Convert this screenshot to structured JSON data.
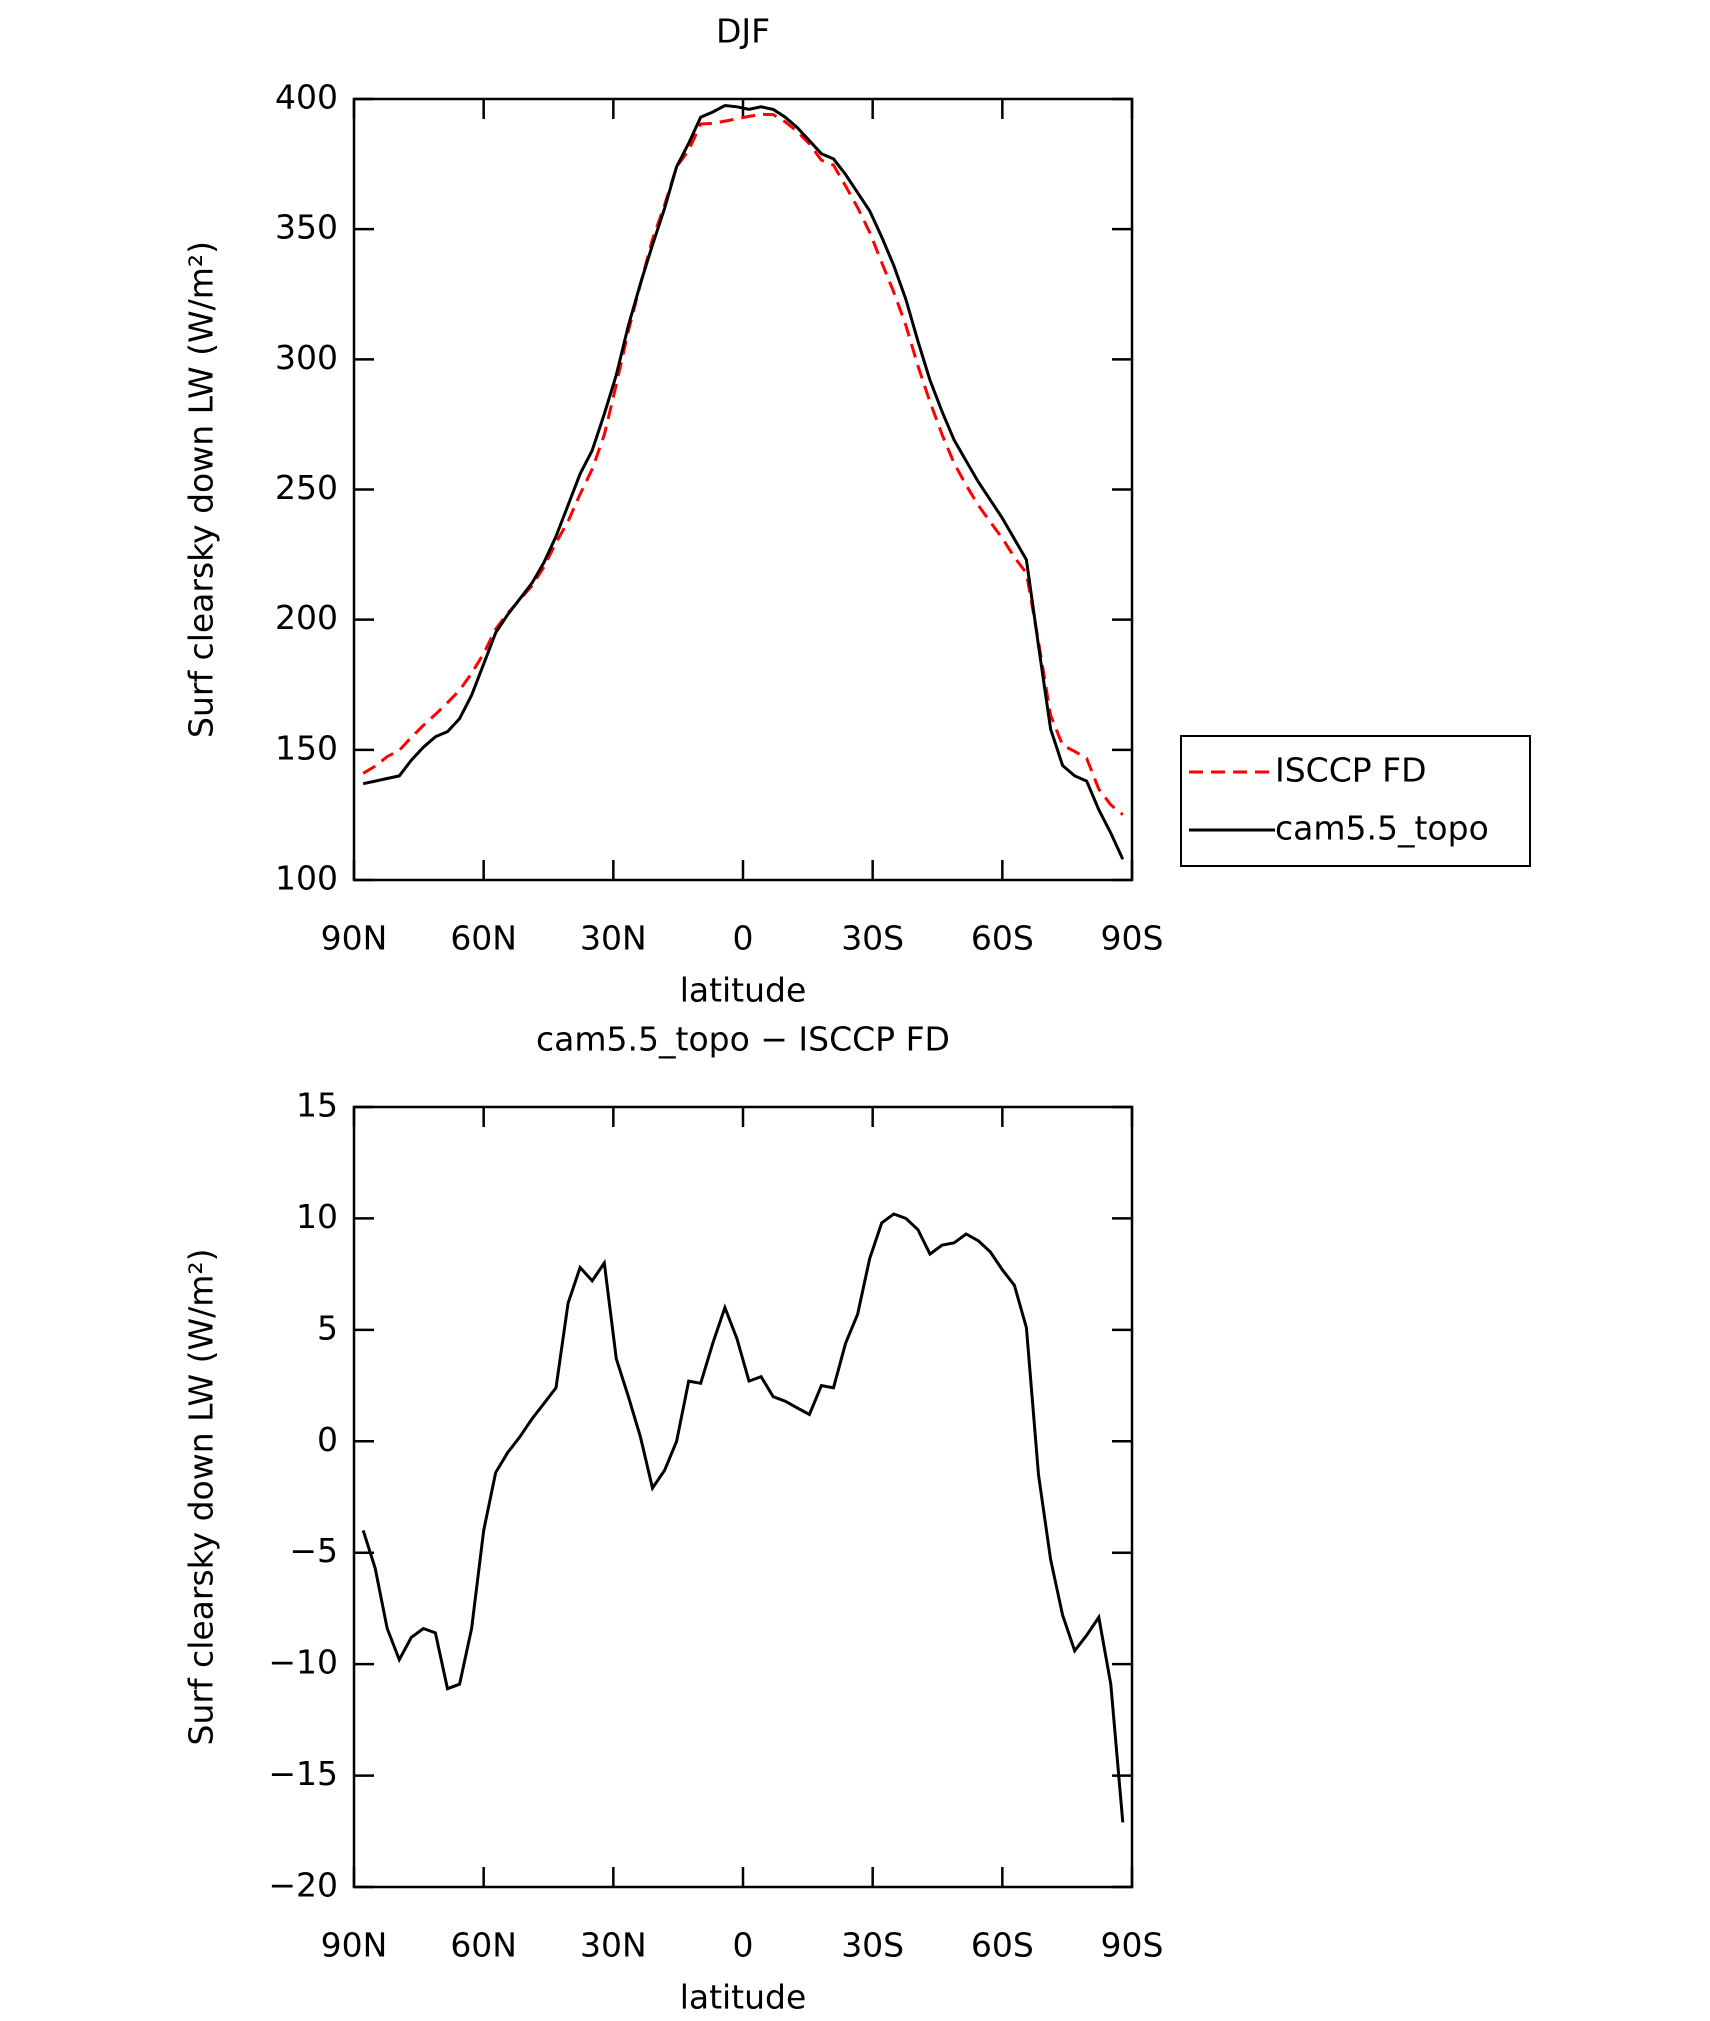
{
  "chart_data": [
    {
      "type": "line",
      "title": "DJF",
      "x_label": "latitude",
      "y_label": "Surf clearsky down LW (W/m²)",
      "x": [
        87.864,
        85.097,
        82.313,
        79.526,
        76.737,
        73.948,
        71.158,
        68.368,
        65.578,
        62.789,
        59.999,
        57.209,
        54.418,
        51.628,
        48.838,
        46.048,
        43.258,
        40.468,
        37.678,
        34.888,
        32.097,
        29.307,
        26.517,
        23.727,
        20.937,
        18.147,
        15.356,
        12.566,
        9.776,
        6.986,
        4.196,
        1.395,
        -1.395,
        -4.196,
        -6.986,
        -9.776,
        -12.566,
        -15.356,
        -18.147,
        -20.937,
        -23.727,
        -26.517,
        -29.307,
        -32.097,
        -34.888,
        -37.678,
        -40.468,
        -43.258,
        -46.048,
        -48.838,
        -51.628,
        -54.418,
        -57.209,
        -59.999,
        -62.789,
        -65.578,
        -68.368,
        -71.158,
        -73.948,
        -76.737,
        -79.526,
        -82.313,
        -85.097,
        -87.864
      ],
      "series": [
        {
          "name": "ISCCP FD",
          "color": "#ff0000",
          "linestyle": "dashed",
          "values": [
            141,
            143.7,
            147.4,
            149.8,
            154.8,
            159.4,
            163.6,
            168.1,
            172.9,
            179.4,
            187,
            196.4,
            202.5,
            207.8,
            213,
            220.3,
            229.6,
            237.8,
            248.2,
            257.8,
            271,
            290.3,
            311,
            328.8,
            346.1,
            359.3,
            374,
            380.3,
            390.4,
            390.6,
            391.5,
            392.4,
            393.3,
            394.1,
            394,
            391.2,
            387.5,
            382.8,
            376.5,
            374.6,
            366.6,
            358.3,
            348.8,
            337.2,
            325.8,
            313,
            297.5,
            283.6,
            271.2,
            260.1,
            251.7,
            244,
            237.5,
            231.3,
            224,
            217.9,
            191.5,
            163.3,
            151.8,
            149.4,
            146.7,
            134.9,
            128.9,
            125.1
          ]
        },
        {
          "name": "cam5.5_topo",
          "color": "#000000",
          "linestyle": "solid",
          "values": [
            137,
            138,
            139,
            140,
            146,
            151,
            155,
            157,
            162,
            171,
            183,
            195,
            202,
            208,
            214,
            222,
            232,
            244,
            256,
            265,
            279,
            294,
            313,
            329,
            344,
            358,
            374,
            383,
            393,
            395,
            397.5,
            397,
            396,
            397,
            396,
            393,
            389,
            384,
            379,
            377,
            371,
            364,
            357,
            347,
            336,
            323,
            307,
            292,
            280,
            269,
            261,
            253,
            246,
            239,
            231,
            223,
            190,
            158,
            144,
            140,
            138,
            127,
            118,
            108
          ]
        }
      ],
      "xlim": [
        90,
        -90
      ],
      "xticks": [
        {
          "value": 90,
          "label": "90N"
        },
        {
          "value": 60,
          "label": "60N"
        },
        {
          "value": 30,
          "label": "30N"
        },
        0,
        {
          "value": -30,
          "label": "30S"
        },
        {
          "value": -60,
          "label": "60S"
        },
        {
          "value": -90,
          "label": "90S"
        }
      ],
      "ylim": [
        100,
        400
      ],
      "yticks": [
        100,
        150,
        200,
        250,
        300,
        350,
        400
      ],
      "legend": "right"
    },
    {
      "type": "line",
      "title": "cam5.5_topo − ISCCP FD",
      "x_label": "latitude",
      "y_label": "Surf clearsky down LW (W/m²)",
      "x": [
        87.864,
        85.097,
        82.313,
        79.526,
        76.737,
        73.948,
        71.158,
        68.368,
        65.578,
        62.789,
        59.999,
        57.209,
        54.418,
        51.628,
        48.838,
        46.048,
        43.258,
        40.468,
        37.678,
        34.888,
        32.097,
        29.307,
        26.517,
        23.727,
        20.937,
        18.147,
        15.356,
        12.566,
        9.776,
        6.986,
        4.196,
        1.395,
        -1.395,
        -4.196,
        -6.986,
        -9.776,
        -12.566,
        -15.356,
        -18.147,
        -20.937,
        -23.727,
        -26.517,
        -29.307,
        -32.097,
        -34.888,
        -37.678,
        -40.468,
        -43.258,
        -46.048,
        -48.838,
        -51.628,
        -54.418,
        -57.209,
        -59.999,
        -62.789,
        -65.578,
        -68.368,
        -71.158,
        -73.948,
        -76.737,
        -79.526,
        -82.313,
        -85.097,
        -87.864
      ],
      "color": "#000000",
      "values": [
        -4,
        -5.7,
        -8.4,
        -9.8,
        -8.8,
        -8.4,
        -8.6,
        -11.1,
        -10.9,
        -8.4,
        -4,
        -1.4,
        -0.5,
        0.2,
        1,
        1.7,
        2.4,
        6.2,
        7.8,
        7.2,
        8,
        3.7,
        2,
        0.2,
        -2.1,
        -1.3,
        0,
        2.7,
        2.6,
        4.4,
        6,
        4.6,
        2.7,
        2.9,
        2,
        1.8,
        1.5,
        1.2,
        2.5,
        2.4,
        4.4,
        5.7,
        8.2,
        9.8,
        10.2,
        10,
        9.5,
        8.4,
        8.8,
        8.9,
        9.3,
        9,
        8.5,
        7.7,
        7,
        5.1,
        -1.5,
        -5.3,
        -7.8,
        -9.4,
        -8.7,
        -7.9,
        -10.9,
        -17.1
      ],
      "xlim": [
        90,
        -90
      ],
      "xticks": [
        {
          "value": 90,
          "label": "90N"
        },
        {
          "value": 60,
          "label": "60N"
        },
        {
          "value": 30,
          "label": "30N"
        },
        0,
        {
          "value": -30,
          "label": "30S"
        },
        {
          "value": -60,
          "label": "60S"
        },
        {
          "value": -90,
          "label": "90S"
        }
      ],
      "ylim": [
        -20,
        15
      ],
      "yticks": [
        {
          "value": -20,
          "label": "−20"
        },
        {
          "value": -15,
          "label": "−15"
        },
        {
          "value": -10,
          "label": "−10"
        },
        {
          "value": -5,
          "label": "−5"
        },
        0,
        5,
        10,
        15
      ]
    }
  ]
}
